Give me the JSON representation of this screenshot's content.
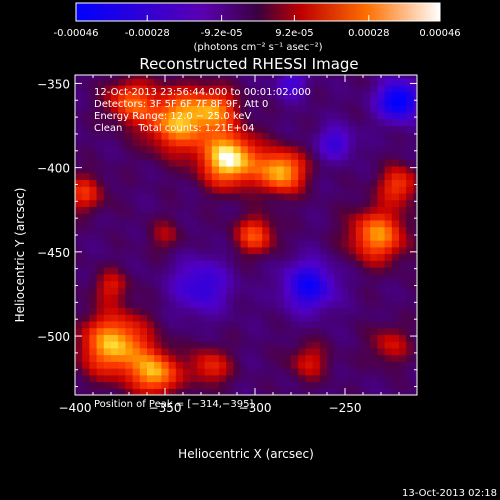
{
  "colorbar": {
    "tick_labels": [
      "-0.00046",
      "-0.00028",
      "-9.2e-05",
      "9.2e-05",
      "0.00028",
      "0.00046"
    ],
    "tick_values": [
      -0.00046,
      -0.00028,
      -9.2e-05,
      9.2e-05,
      0.00028,
      0.00046
    ],
    "range": [
      -0.00046,
      0.00046
    ],
    "unit_label": "(photons cm⁻² s⁻¹ asec⁻²)"
  },
  "chart_data": {
    "type": "heatmap",
    "title": "Reconstructed RHESSI Image",
    "xlabel": "Heliocentric X (arcsec)",
    "ylabel": "Heliocentric Y (arcsec)",
    "xlim": [
      -400,
      -210
    ],
    "ylim": [
      -535,
      -345
    ],
    "x_ticks": [
      -400,
      -350,
      -300,
      -250
    ],
    "x_tick_labels": [
      "−400",
      "−350",
      "−300",
      "−250"
    ],
    "y_ticks": [
      -350,
      -400,
      -450,
      -500
    ],
    "y_tick_labels": [
      "−350",
      "−400",
      "−450",
      "−500"
    ],
    "info_lines": [
      "12-Oct-2013 23:56:44.000 to 00:01:02.000",
      "Detectors: 3F 5F 6F 7F 8F 9F, Att 0",
      "Energy Range: 12.0 − 25.0 keV",
      "Clean     Total counts: 1.21E+04"
    ],
    "peak_label": "Position of Peak = [−314,−395]",
    "peak_position": [
      -314,
      -395
    ],
    "blobs": [
      {
        "x": -314,
        "y": -395,
        "sigma": 11,
        "amp": 1.0
      },
      {
        "x": -343,
        "y": -372,
        "sigma": 13,
        "amp": 0.78
      },
      {
        "x": -322,
        "y": -365,
        "sigma": 9,
        "amp": 0.55
      },
      {
        "x": -285,
        "y": -402,
        "sigma": 9,
        "amp": 0.82
      },
      {
        "x": -370,
        "y": -360,
        "sigma": 9,
        "amp": 0.55
      },
      {
        "x": -300,
        "y": -440,
        "sigma": 8,
        "amp": 0.55
      },
      {
        "x": -232,
        "y": -440,
        "sigma": 11,
        "amp": 0.72
      },
      {
        "x": -220,
        "y": -410,
        "sigma": 8,
        "amp": 0.5
      },
      {
        "x": -395,
        "y": -415,
        "sigma": 8,
        "amp": 0.45
      },
      {
        "x": -380,
        "y": -470,
        "sigma": 7,
        "amp": 0.35
      },
      {
        "x": -378,
        "y": -505,
        "sigma": 13,
        "amp": 0.85
      },
      {
        "x": -355,
        "y": -522,
        "sigma": 9,
        "amp": 0.75
      },
      {
        "x": -325,
        "y": -518,
        "sigma": 8,
        "amp": 0.45
      },
      {
        "x": -270,
        "y": -515,
        "sigma": 8,
        "amp": 0.35
      },
      {
        "x": -225,
        "y": -505,
        "sigma": 8,
        "amp": 0.35
      },
      {
        "x": -350,
        "y": -440,
        "sigma": 7,
        "amp": 0.25
      }
    ],
    "negative_regions": [
      {
        "x": -220,
        "y": -360,
        "sigma": 8,
        "amp": -0.9
      },
      {
        "x": -270,
        "y": -470,
        "sigma": 10,
        "amp": -0.7
      },
      {
        "x": -330,
        "y": -470,
        "sigma": 11,
        "amp": -0.5
      },
      {
        "x": -255,
        "y": -385,
        "sigma": 7,
        "amp": -0.45
      },
      {
        "x": -280,
        "y": -350,
        "sigma": 6,
        "amp": -0.4
      }
    ]
  },
  "footer": {
    "timestamp": "13-Oct-2013 02:18"
  }
}
